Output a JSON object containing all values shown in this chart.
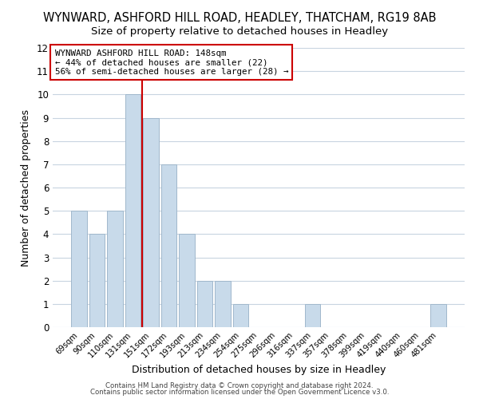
{
  "title": "WYNWARD, ASHFORD HILL ROAD, HEADLEY, THATCHAM, RG19 8AB",
  "subtitle": "Size of property relative to detached houses in Headley",
  "xlabel": "Distribution of detached houses by size in Headley",
  "ylabel": "Number of detached properties",
  "bar_labels": [
    "69sqm",
    "90sqm",
    "110sqm",
    "131sqm",
    "151sqm",
    "172sqm",
    "193sqm",
    "213sqm",
    "234sqm",
    "254sqm",
    "275sqm",
    "296sqm",
    "316sqm",
    "337sqm",
    "357sqm",
    "378sqm",
    "399sqm",
    "419sqm",
    "440sqm",
    "460sqm",
    "481sqm"
  ],
  "bar_values": [
    5,
    4,
    5,
    10,
    9,
    7,
    4,
    2,
    2,
    1,
    0,
    0,
    0,
    1,
    0,
    0,
    0,
    0,
    0,
    0,
    1
  ],
  "bar_color": "#c8daea",
  "bar_edge_color": "#a0b8cc",
  "vline_x_index": 3,
  "vline_color": "#cc0000",
  "ylim": [
    0,
    12
  ],
  "yticks": [
    0,
    1,
    2,
    3,
    4,
    5,
    6,
    7,
    8,
    9,
    10,
    11,
    12
  ],
  "grid_color": "#c8d4e0",
  "annotation_text": "WYNWARD ASHFORD HILL ROAD: 148sqm\n← 44% of detached houses are smaller (22)\n56% of semi-detached houses are larger (28) →",
  "footer_line1": "Contains HM Land Registry data © Crown copyright and database right 2024.",
  "footer_line2": "Contains public sector information licensed under the Open Government Licence v3.0.",
  "background_color": "#ffffff",
  "title_fontsize": 10.5,
  "subtitle_fontsize": 9.5
}
